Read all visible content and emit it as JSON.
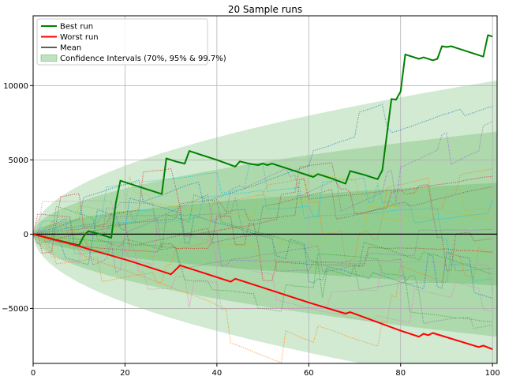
{
  "chart_data": {
    "type": "line",
    "title": "20 Sample runs",
    "xlabel": "",
    "ylabel": "",
    "xlim": [
      0,
      101
    ],
    "ylim": [
      -8700,
      14700
    ],
    "xticks": [
      0,
      20,
      40,
      60,
      80,
      100
    ],
    "yticks": [
      -5000,
      0,
      5000,
      10000
    ],
    "grid": true,
    "legend_position": "top-left",
    "legend": [
      {
        "label": "Best run",
        "color": "#008000",
        "style": "line"
      },
      {
        "label": "Worst run",
        "color": "#ff0000",
        "style": "line"
      },
      {
        "label": "Mean",
        "color": "#000000",
        "style": "line"
      },
      {
        "label": "Confidence Intervals (70%, 95% & 99.7%)",
        "color": "#2ca02c",
        "style": "patch"
      }
    ],
    "confidence_bands": [
      {
        "level": "99.7%",
        "upper_at_100": 10300,
        "lower_at_100": -10300
      },
      {
        "level": "95%",
        "upper_at_100": 6870,
        "lower_at_100": -6870
      },
      {
        "level": "70%",
        "upper_at_100": 3440,
        "lower_at_100": -3440
      }
    ],
    "mean": {
      "x": [
        0,
        101
      ],
      "y": [
        0,
        0
      ]
    },
    "series": [
      {
        "name": "Best run",
        "color": "#008000",
        "x": [
          0,
          4,
          8,
          10,
          11,
          12,
          14,
          17,
          18,
          19,
          22,
          28,
          29,
          31,
          33,
          34,
          37,
          40,
          44,
          45,
          47,
          49,
          50,
          51,
          52,
          55,
          58,
          61,
          62,
          65,
          68,
          69,
          72,
          75,
          76,
          78,
          79,
          80,
          81,
          84,
          85,
          87,
          88,
          89,
          90,
          91,
          93,
          96,
          98,
          99,
          100
        ],
        "y": [
          0,
          -300,
          -600,
          -750,
          -150,
          200,
          50,
          -250,
          2100,
          3600,
          3300,
          2700,
          5100,
          4900,
          4750,
          5600,
          5300,
          5000,
          4550,
          4900,
          4750,
          4650,
          4750,
          4650,
          4750,
          4450,
          4150,
          3850,
          4050,
          3750,
          3400,
          4250,
          4000,
          3700,
          4300,
          9100,
          9050,
          9600,
          12100,
          11800,
          11900,
          11700,
          11800,
          12650,
          12600,
          12650,
          12450,
          12150,
          11950,
          13400,
          13300
        ]
      },
      {
        "name": "Worst run",
        "color": "#ff0000",
        "x": [
          0,
          10,
          12,
          20,
          22,
          30,
          32,
          40,
          43,
          44,
          50,
          60,
          68,
          69,
          80,
          84,
          85,
          86,
          87,
          97,
          98,
          100
        ],
        "y": [
          0,
          -800,
          -1000,
          -1700,
          -1900,
          -2700,
          -2100,
          -2900,
          -3200,
          -3000,
          -3600,
          -4600,
          -5350,
          -5250,
          -6500,
          -6900,
          -6700,
          -6800,
          -6650,
          -7600,
          -7500,
          -7750
        ]
      }
    ],
    "sample_runs": [
      {
        "color": "#1f77b4",
        "end": 8600
      },
      {
        "color": "#ff7f0e",
        "end": 4400
      },
      {
        "color": "#2ca02c",
        "end": -5900
      },
      {
        "color": "#d62728",
        "end": 3900
      },
      {
        "color": "#9467bd",
        "end": 7600
      },
      {
        "color": "#8c564b",
        "end": -300
      },
      {
        "color": "#e377c2",
        "end": -4000
      },
      {
        "color": "#7f7f7f",
        "end": -6100
      },
      {
        "color": "#bcbd22",
        "end": 1000
      },
      {
        "color": "#17becf",
        "end": 2300
      },
      {
        "color": "#1f77b4",
        "end": -4300
      },
      {
        "color": "#ff7f0e",
        "end": -1300
      },
      {
        "color": "#2ca02c",
        "end": -2700
      },
      {
        "color": "#d62728",
        "end": -1200
      },
      {
        "color": "#9467bd",
        "end": 300
      },
      {
        "color": "#8c564b",
        "end": 3200
      },
      {
        "color": "#e377c2",
        "end": -5200
      },
      {
        "color": "#7f7f7f",
        "end": -2300
      },
      {
        "color": "#bcbd22",
        "end": 1700
      },
      {
        "color": "#17becf",
        "end": -3000
      }
    ]
  }
}
